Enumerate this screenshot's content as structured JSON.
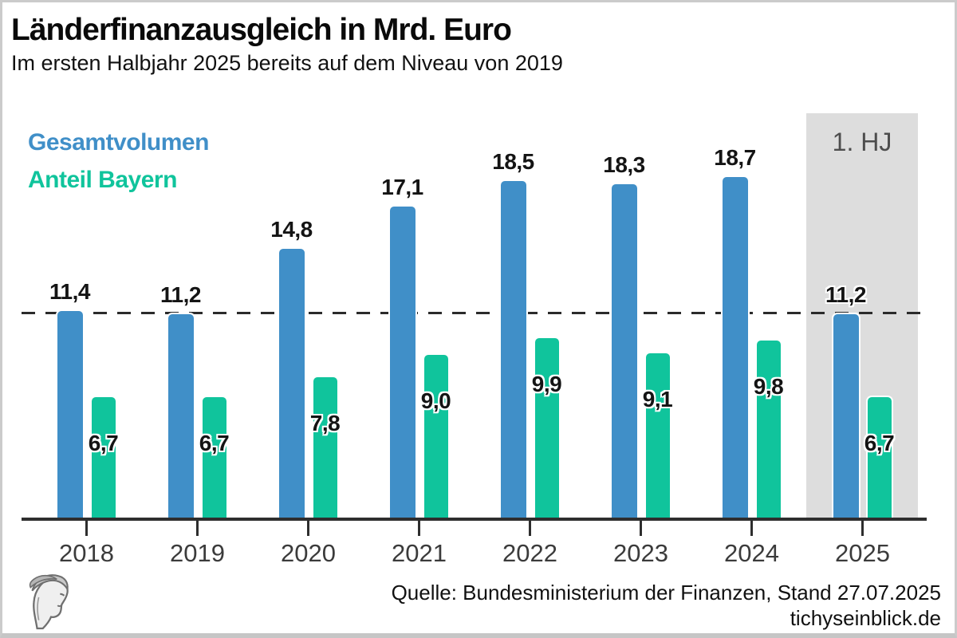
{
  "header": {
    "title": "Länderfinanzausgleich in Mrd. Euro",
    "subtitle": "Im ersten Halbjahr 2025 bereits auf dem Niveau von 2019"
  },
  "legend": [
    {
      "label": "Gesamtvolumen",
      "color": "#408fc8"
    },
    {
      "label": "Anteil Bayern",
      "color": "#10c49c"
    }
  ],
  "chart_data": {
    "type": "bar",
    "categories": [
      "2018",
      "2019",
      "2020",
      "2021",
      "2022",
      "2023",
      "2024",
      "2025"
    ],
    "series": [
      {
        "name": "Gesamtvolumen",
        "color": "#408fc8",
        "values": [
          11.4,
          11.2,
          14.8,
          17.1,
          18.5,
          18.3,
          18.7,
          11.2
        ],
        "labels": [
          "11,4",
          "11,2",
          "14,8",
          "17,1",
          "18,5",
          "18,3",
          "18,7",
          "11,2"
        ]
      },
      {
        "name": "Anteil Bayern",
        "color": "#10c49c",
        "values": [
          6.7,
          6.7,
          7.8,
          9.0,
          9.9,
          9.1,
          9.8,
          6.7
        ],
        "labels": [
          "6,7",
          "6,7",
          "7,8",
          "9,0",
          "9,9",
          "9,1",
          "9,8",
          "6,7"
        ]
      }
    ],
    "ylim": [
      0,
      20
    ],
    "grid": false,
    "legend_position": "top-left",
    "reference_line": {
      "value": 11.2,
      "style": "dashed",
      "color": "#2b2b2b"
    },
    "highlight": {
      "category": "2025",
      "label": "1. HJ",
      "background": "#dddddd"
    }
  },
  "footer": {
    "source": "Quelle: Bundesministerium der Finanzen, Stand 27.07.2025",
    "website": "tichyseinblick.de"
  }
}
